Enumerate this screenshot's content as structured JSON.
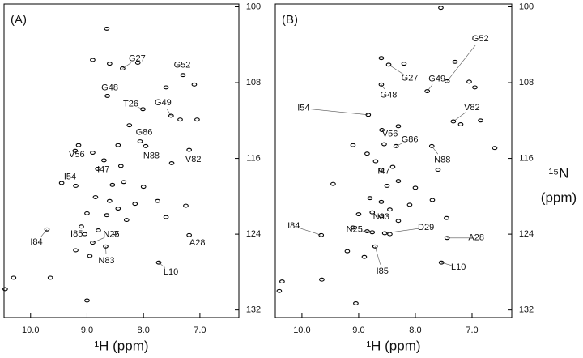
{
  "chart_data": [
    {
      "type": "scatter",
      "title": "(A)",
      "xlabel": "¹H (ppm)",
      "xlim": [
        10.47,
        6.31
      ],
      "ylim": [
        99.7,
        132.8
      ],
      "xticks": [
        {
          "value": 10,
          "label": "10.0"
        },
        {
          "value": 9,
          "label": "9.0"
        },
        {
          "value": 8,
          "label": "8.0"
        },
        {
          "value": 7,
          "label": "7.0"
        }
      ],
      "yticks": [
        100,
        108,
        116,
        124,
        132
      ],
      "annotations": [
        {
          "text": "G27",
          "x": 8.37,
          "y": 106.5
        },
        {
          "text": "G52",
          "x": 7.3,
          "y": 107.2
        },
        {
          "text": "G48",
          "x": 8.64,
          "y": 109.4
        },
        {
          "text": "T26",
          "x": 8.01,
          "y": 110.8
        },
        {
          "text": "G49",
          "x": 7.51,
          "y": 111.5
        },
        {
          "text": "G86",
          "x": 8.06,
          "y": 114.2
        },
        {
          "text": "N88",
          "x": 7.96,
          "y": 114.7
        },
        {
          "text": "V56",
          "x": 9.21,
          "y": 115.2
        },
        {
          "text": "V82",
          "x": 7.19,
          "y": 115.1
        },
        {
          "text": "I47",
          "x": 8.81,
          "y": 117.1
        },
        {
          "text": "I54",
          "x": 9.2,
          "y": 118.9
        },
        {
          "text": "I85",
          "x": 9.04,
          "y": 124.0
        },
        {
          "text": "N25",
          "x": 8.9,
          "y": 124.9
        },
        {
          "text": "I84",
          "x": 9.71,
          "y": 123.5
        },
        {
          "text": "A28",
          "x": 7.19,
          "y": 124.1
        },
        {
          "text": "N83",
          "x": 8.67,
          "y": 125.3
        },
        {
          "text": "L10",
          "x": 7.73,
          "y": 127.0
        }
      ],
      "points": {
        "x": [
          8.65,
          8.9,
          8.6,
          8.1,
          7.6,
          7.1,
          7.35,
          7.05,
          8.25,
          8.45,
          9.15,
          8.9,
          8.7,
          8.4,
          7.5,
          9.45,
          8.55,
          8.35,
          8.0,
          8.85,
          8.6,
          8.45,
          8.15,
          7.75,
          9.0,
          8.65,
          8.3,
          7.6,
          7.25,
          9.1,
          8.8,
          8.5,
          9.2,
          8.95,
          10.3,
          10.45,
          9.0,
          9.65
        ],
        "y": [
          102.3,
          105.6,
          106.0,
          105.9,
          108.5,
          108.2,
          111.9,
          111.9,
          112.5,
          114.6,
          114.6,
          115.4,
          116.2,
          116.8,
          116.5,
          118.6,
          118.8,
          118.5,
          119.0,
          120.1,
          120.5,
          121.3,
          120.8,
          120.5,
          121.8,
          122.0,
          122.5,
          122.2,
          121.0,
          123.2,
          123.6,
          123.9,
          125.7,
          126.3,
          128.6,
          129.8,
          131.0,
          128.6
        ]
      }
    },
    {
      "type": "scatter",
      "title": "(B)",
      "xlabel": "¹H (ppm)",
      "ylabel": [
        "¹⁵N",
        "(ppm)"
      ],
      "xlim": [
        10.47,
        6.3
      ],
      "ylim": [
        99.7,
        132.8
      ],
      "xticks": [
        {
          "value": 10,
          "label": "10.0"
        },
        {
          "value": 9,
          "label": "9.0"
        },
        {
          "value": 8,
          "label": "8.0"
        },
        {
          "value": 7,
          "label": "7.0"
        }
      ],
      "yticks": [
        100,
        108,
        116,
        124,
        132
      ],
      "annotations": [
        {
          "text": "G52",
          "x": 7.44,
          "y": 107.85
        },
        {
          "text": "G27",
          "x": 8.47,
          "y": 106.1
        },
        {
          "text": "G49",
          "x": 7.79,
          "y": 108.9
        },
        {
          "text": "G48",
          "x": 8.6,
          "y": 108.2
        },
        {
          "text": "I54",
          "x": 8.83,
          "y": 111.4
        },
        {
          "text": "V82",
          "x": 7.33,
          "y": 112.1
        },
        {
          "text": "V56",
          "x": 8.59,
          "y": 113.0
        },
        {
          "text": "G86",
          "x": 8.34,
          "y": 114.7
        },
        {
          "text": "N88",
          "x": 7.71,
          "y": 114.7
        },
        {
          "text": "I47",
          "x": 8.6,
          "y": 117.2
        },
        {
          "text": "N83",
          "x": 8.76,
          "y": 121.7
        },
        {
          "text": "I84",
          "x": 9.66,
          "y": 124.1
        },
        {
          "text": "N25",
          "x": 8.76,
          "y": 123.8
        },
        {
          "text": "D29",
          "x": 8.54,
          "y": 123.9
        },
        {
          "text": "A28",
          "x": 7.44,
          "y": 124.4
        },
        {
          "text": "I85",
          "x": 8.71,
          "y": 125.3
        },
        {
          "text": "L10",
          "x": 7.54,
          "y": 127.0
        }
      ],
      "points": {
        "x": [
          7.55,
          8.6,
          8.2,
          7.3,
          7.05,
          6.95,
          7.2,
          6.85,
          8.3,
          8.55,
          9.1,
          8.85,
          8.7,
          8.4,
          7.6,
          9.45,
          8.5,
          8.3,
          8.0,
          8.8,
          8.6,
          8.45,
          8.1,
          7.7,
          9.0,
          8.6,
          8.3,
          7.45,
          9.1,
          8.85,
          8.45,
          9.2,
          8.9,
          10.35,
          10.4,
          9.05,
          9.65,
          6.6
        ],
        "y": [
          100.1,
          105.4,
          106.0,
          105.8,
          107.9,
          108.5,
          112.4,
          112.0,
          112.6,
          114.5,
          114.6,
          115.5,
          116.3,
          116.9,
          117.2,
          118.7,
          118.9,
          118.4,
          119.1,
          120.2,
          120.6,
          121.4,
          120.9,
          120.4,
          121.9,
          122.1,
          122.6,
          122.3,
          123.3,
          123.7,
          124.0,
          125.8,
          126.4,
          129.0,
          130.0,
          131.3,
          128.8,
          114.9
        ]
      }
    }
  ]
}
